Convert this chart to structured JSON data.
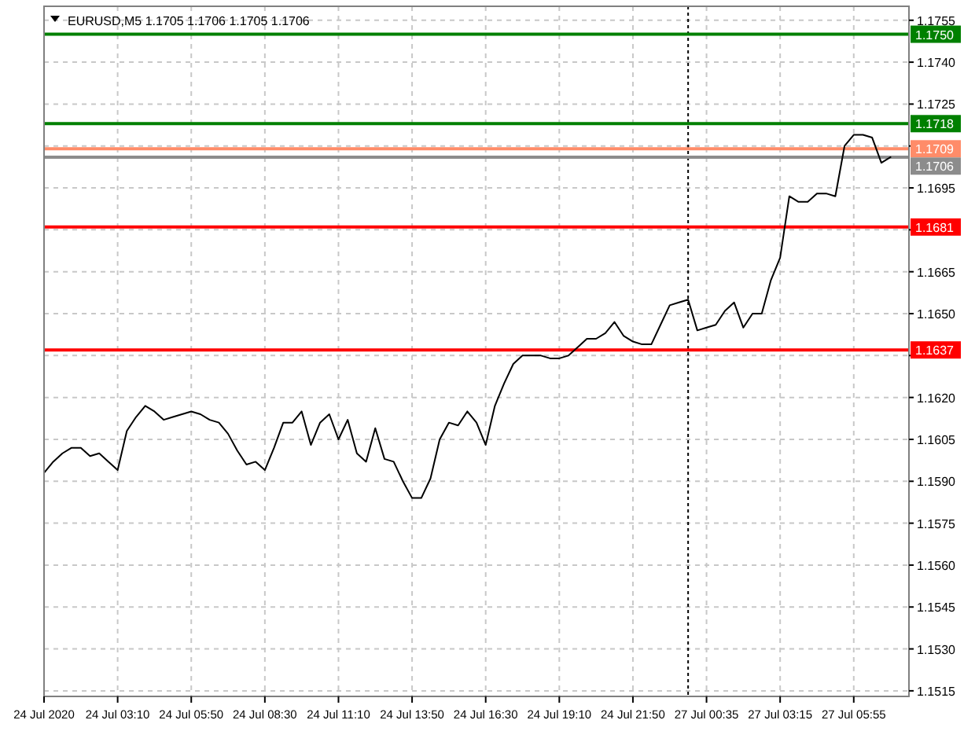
{
  "chart_data": {
    "type": "line",
    "title": "EURUSD,M5  1.1705 1.1706 1.1705 1.1706",
    "categories": [
      "24 Jul 2020",
      null,
      null,
      null,
      null,
      null,
      null,
      null,
      "24 Jul 03:10",
      null,
      null,
      null,
      null,
      null,
      null,
      null,
      "24 Jul 05:50",
      null,
      null,
      null,
      null,
      null,
      null,
      null,
      "24 Jul 08:30",
      null,
      null,
      null,
      null,
      null,
      null,
      null,
      "24 Jul 11:10",
      null,
      null,
      null,
      null,
      null,
      null,
      null,
      "24 Jul 13:50",
      null,
      null,
      null,
      null,
      null,
      null,
      null,
      "24 Jul 16:30",
      null,
      null,
      null,
      null,
      null,
      null,
      null,
      "24 Jul 19:10",
      null,
      null,
      null,
      null,
      null,
      null,
      null,
      "24 Jul 21:50",
      null,
      null,
      null,
      null,
      null,
      null,
      null,
      "27 Jul 00:35",
      null,
      null,
      null,
      null,
      null,
      null,
      null,
      "27 Jul 03:15",
      null,
      null,
      null,
      null,
      null,
      null,
      null,
      "27 Jul 05:55",
      null,
      null,
      null,
      null,
      null,
      null
    ],
    "ylim": [
      1.1513,
      1.176
    ],
    "yticks": [
      {
        "value": 1.1515,
        "label": "1.1515"
      },
      {
        "value": 1.153,
        "label": "1.1530"
      },
      {
        "value": 1.1545,
        "label": "1.1545"
      },
      {
        "value": 1.156,
        "label": "1.1560"
      },
      {
        "value": 1.1575,
        "label": "1.1575"
      },
      {
        "value": 1.159,
        "label": "1.1590"
      },
      {
        "value": 1.1605,
        "label": "1.1605"
      },
      {
        "value": 1.162,
        "label": "1.1620"
      },
      {
        "value": 1.1635,
        "label": null
      },
      {
        "value": 1.165,
        "label": "1.1650"
      },
      {
        "value": 1.1665,
        "label": "1.1665"
      },
      {
        "value": 1.168,
        "label": null
      },
      {
        "value": 1.1695,
        "label": "1.1695"
      },
      {
        "value": 1.171,
        "label": null
      },
      {
        "value": 1.1725,
        "label": "1.1725"
      },
      {
        "value": 1.174,
        "label": "1.1740"
      },
      {
        "value": 1.1755,
        "label": "1.1755"
      }
    ],
    "grid": true,
    "marker": "none",
    "line_style": "solid",
    "series": [
      {
        "color": "#000000",
        "values": [
          1.1593,
          1.1597,
          1.16,
          1.1602,
          1.1602,
          1.1599,
          1.16,
          1.1597,
          1.1594,
          1.1608,
          1.1613,
          1.1617,
          1.1615,
          1.1612,
          1.1613,
          1.1614,
          1.1615,
          1.1614,
          1.1612,
          1.1611,
          1.1607,
          1.1601,
          1.1596,
          1.1597,
          1.1594,
          1.1602,
          1.1611,
          1.1611,
          1.1615,
          1.1603,
          1.1611,
          1.1614,
          1.1605,
          1.1612,
          1.16,
          1.1597,
          1.1609,
          1.1598,
          1.1597,
          1.159,
          1.1584,
          1.1584,
          1.1591,
          1.1605,
          1.1611,
          1.161,
          1.1615,
          1.1611,
          1.1603,
          1.1617,
          1.1625,
          1.1632,
          1.1635,
          1.1635,
          1.1635,
          1.1634,
          1.1634,
          1.1635,
          1.1638,
          1.1641,
          1.1641,
          1.1643,
          1.1647,
          1.1642,
          1.164,
          1.1639,
          1.1639,
          1.1646,
          1.1653,
          1.1654,
          1.1655,
          1.1644,
          1.1645,
          1.1646,
          1.1651,
          1.1654,
          1.1645,
          1.165,
          1.165,
          1.1662,
          1.167,
          1.1692,
          1.169,
          1.169,
          1.1693,
          1.1693,
          1.1692,
          1.171,
          1.1714,
          1.1714,
          1.1713,
          1.1704,
          1.1706,
          null,
          null
        ]
      }
    ],
    "ref_lines": [
      {
        "axis": "y",
        "value": 1.175,
        "label": "1.1750",
        "color": "#008000"
      },
      {
        "axis": "y",
        "value": 1.1718,
        "label": "1.1718",
        "color": "#008000"
      },
      {
        "axis": "y",
        "value": 1.1709,
        "label": "1.1709",
        "color": "#ff8c69"
      },
      {
        "axis": "y",
        "value": 1.1706,
        "label": "1.1706",
        "color": "#8c8c8c"
      },
      {
        "axis": "y",
        "value": 1.1681,
        "label": "1.1681",
        "color": "#ff0000"
      },
      {
        "axis": "y",
        "value": 1.1637,
        "label": "1.1637",
        "color": "#ff0000"
      }
    ]
  }
}
